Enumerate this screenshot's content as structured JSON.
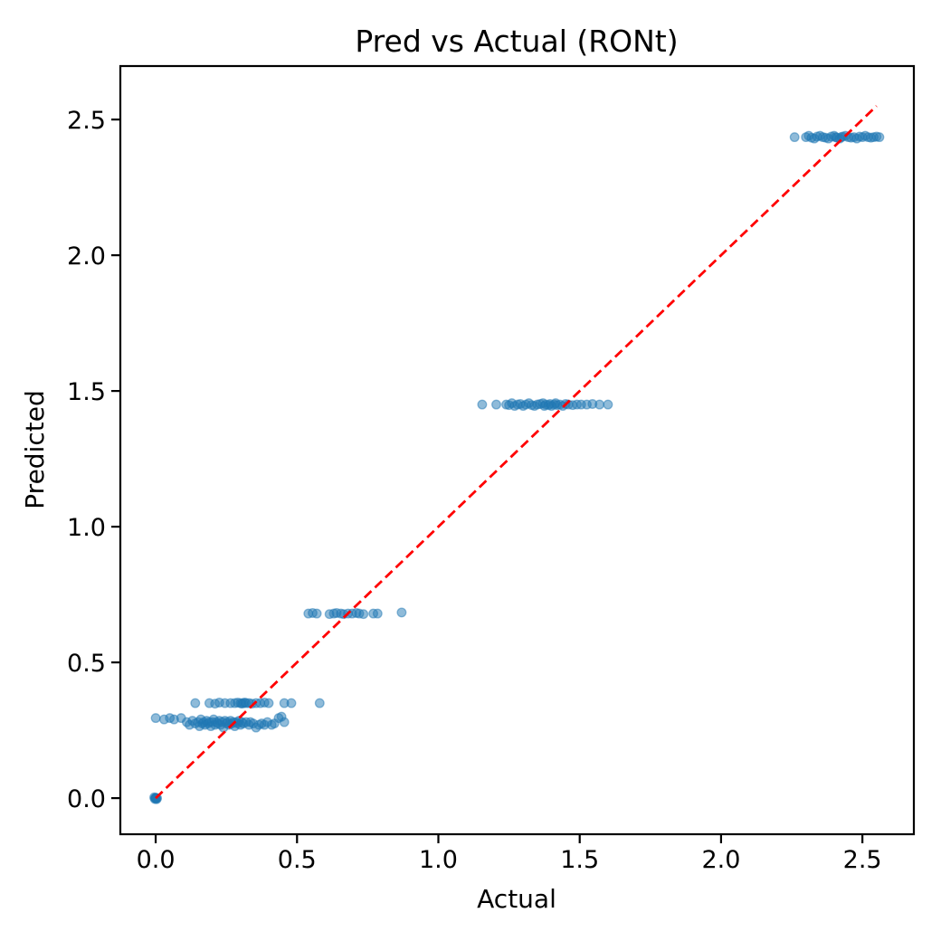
{
  "figure": {
    "title": "Pred vs Actual (RONt)"
  },
  "chart_data": {
    "type": "scatter",
    "title": "Pred vs Actual (RONt)",
    "xlabel": "Actual",
    "ylabel": "Predicted",
    "xlim": [
      -0.125,
      2.682
    ],
    "ylim": [
      -0.133,
      2.697
    ],
    "x_ticks": [
      0.0,
      0.5,
      1.0,
      1.5,
      2.0,
      2.5
    ],
    "x_tick_labels": [
      "0.0",
      "0.5",
      "1.0",
      "1.5",
      "2.0",
      "2.5"
    ],
    "y_ticks": [
      0.0,
      0.5,
      1.0,
      1.5,
      2.0,
      2.5
    ],
    "y_tick_labels": [
      "0.0",
      "0.5",
      "1.0",
      "1.5",
      "2.0",
      "2.5"
    ],
    "grid": false,
    "marker": {
      "color": "#1f77b4",
      "opacity": 0.5,
      "radius": 4.8
    },
    "identity_line": {
      "color": "#ff0000",
      "style": "dashed",
      "width": 2.8,
      "from": [
        0.0,
        0.0
      ],
      "to": [
        2.55,
        2.55
      ]
    },
    "series": [
      {
        "name": "predictions",
        "points": [
          [
            0,
            0
          ],
          [
            0,
            0
          ],
          [
            0,
            0
          ],
          [
            0,
            0
          ],
          [
            0,
            0
          ],
          [
            0,
            0
          ],
          [
            0,
            0
          ],
          [
            0,
            0
          ],
          [
            0.005,
            0
          ],
          [
            -0.005,
            0.003
          ],
          [
            0.003,
            -0.004
          ],
          [
            -0.003,
            -0.003
          ],
          [
            0.0,
            0.295
          ],
          [
            0.03,
            0.29
          ],
          [
            0.05,
            0.295
          ],
          [
            0.065,
            0.29
          ],
          [
            0.09,
            0.295
          ],
          [
            0.11,
            0.28
          ],
          [
            0.12,
            0.27
          ],
          [
            0.13,
            0.285
          ],
          [
            0.14,
            0.275
          ],
          [
            0.15,
            0.28
          ],
          [
            0.155,
            0.265
          ],
          [
            0.16,
            0.29
          ],
          [
            0.165,
            0.275
          ],
          [
            0.17,
            0.28
          ],
          [
            0.175,
            0.27
          ],
          [
            0.18,
            0.285
          ],
          [
            0.185,
            0.275
          ],
          [
            0.19,
            0.28
          ],
          [
            0.195,
            0.265
          ],
          [
            0.2,
            0.28
          ],
          [
            0.205,
            0.29
          ],
          [
            0.21,
            0.27
          ],
          [
            0.215,
            0.28
          ],
          [
            0.22,
            0.275
          ],
          [
            0.225,
            0.285
          ],
          [
            0.23,
            0.27
          ],
          [
            0.235,
            0.28
          ],
          [
            0.24,
            0.26
          ],
          [
            0.245,
            0.285
          ],
          [
            0.25,
            0.275
          ],
          [
            0.255,
            0.28
          ],
          [
            0.26,
            0.27
          ],
          [
            0.265,
            0.285
          ],
          [
            0.27,
            0.275
          ],
          [
            0.275,
            0.28
          ],
          [
            0.28,
            0.265
          ],
          [
            0.285,
            0.28
          ],
          [
            0.29,
            0.275
          ],
          [
            0.295,
            0.285
          ],
          [
            0.3,
            0.27
          ],
          [
            0.305,
            0.28
          ],
          [
            0.31,
            0.275
          ],
          [
            0.32,
            0.28
          ],
          [
            0.33,
            0.27
          ],
          [
            0.335,
            0.28
          ],
          [
            0.345,
            0.275
          ],
          [
            0.355,
            0.26
          ],
          [
            0.365,
            0.27
          ],
          [
            0.375,
            0.275
          ],
          [
            0.385,
            0.27
          ],
          [
            0.395,
            0.28
          ],
          [
            0.41,
            0.27
          ],
          [
            0.42,
            0.275
          ],
          [
            0.435,
            0.295
          ],
          [
            0.445,
            0.3
          ],
          [
            0.455,
            0.28
          ],
          [
            0.14,
            0.35
          ],
          [
            0.19,
            0.35
          ],
          [
            0.21,
            0.348
          ],
          [
            0.225,
            0.352
          ],
          [
            0.245,
            0.35
          ],
          [
            0.265,
            0.35
          ],
          [
            0.28,
            0.35
          ],
          [
            0.29,
            0.352
          ],
          [
            0.3,
            0.35
          ],
          [
            0.305,
            0.348
          ],
          [
            0.31,
            0.35
          ],
          [
            0.315,
            0.352
          ],
          [
            0.32,
            0.35
          ],
          [
            0.33,
            0.35
          ],
          [
            0.34,
            0.348
          ],
          [
            0.355,
            0.35
          ],
          [
            0.37,
            0.35
          ],
          [
            0.385,
            0.352
          ],
          [
            0.4,
            0.35
          ],
          [
            0.455,
            0.35
          ],
          [
            0.48,
            0.35
          ],
          [
            0.58,
            0.35
          ],
          [
            0.54,
            0.68
          ],
          [
            0.555,
            0.682
          ],
          [
            0.57,
            0.68
          ],
          [
            0.615,
            0.678
          ],
          [
            0.63,
            0.68
          ],
          [
            0.64,
            0.682
          ],
          [
            0.655,
            0.68
          ],
          [
            0.665,
            0.678
          ],
          [
            0.68,
            0.68
          ],
          [
            0.695,
            0.68
          ],
          [
            0.71,
            0.682
          ],
          [
            0.72,
            0.68
          ],
          [
            0.735,
            0.678
          ],
          [
            0.77,
            0.68
          ],
          [
            0.785,
            0.68
          ],
          [
            0.87,
            0.684
          ],
          [
            1.155,
            1.45
          ],
          [
            1.205,
            1.45
          ],
          [
            1.24,
            1.45
          ],
          [
            1.25,
            1.448
          ],
          [
            1.26,
            1.455
          ],
          [
            1.27,
            1.445
          ],
          [
            1.28,
            1.45
          ],
          [
            1.29,
            1.452
          ],
          [
            1.3,
            1.445
          ],
          [
            1.31,
            1.45
          ],
          [
            1.32,
            1.455
          ],
          [
            1.33,
            1.448
          ],
          [
            1.34,
            1.445
          ],
          [
            1.35,
            1.45
          ],
          [
            1.36,
            1.452
          ],
          [
            1.37,
            1.455
          ],
          [
            1.375,
            1.445
          ],
          [
            1.38,
            1.45
          ],
          [
            1.39,
            1.448
          ],
          [
            1.395,
            1.452
          ],
          [
            1.4,
            1.445
          ],
          [
            1.41,
            1.45
          ],
          [
            1.415,
            1.455
          ],
          [
            1.42,
            1.448
          ],
          [
            1.43,
            1.45
          ],
          [
            1.44,
            1.445
          ],
          [
            1.45,
            1.452
          ],
          [
            1.46,
            1.45
          ],
          [
            1.475,
            1.448
          ],
          [
            1.49,
            1.45
          ],
          [
            1.505,
            1.45
          ],
          [
            1.525,
            1.45
          ],
          [
            1.545,
            1.452
          ],
          [
            1.57,
            1.45
          ],
          [
            1.6,
            1.45
          ],
          [
            2.26,
            2.435
          ],
          [
            2.3,
            2.435
          ],
          [
            2.31,
            2.44
          ],
          [
            2.32,
            2.433
          ],
          [
            2.33,
            2.43
          ],
          [
            2.34,
            2.437
          ],
          [
            2.35,
            2.44
          ],
          [
            2.36,
            2.435
          ],
          [
            2.37,
            2.433
          ],
          [
            2.38,
            2.43
          ],
          [
            2.39,
            2.437
          ],
          [
            2.4,
            2.44
          ],
          [
            2.405,
            2.435
          ],
          [
            2.41,
            2.433
          ],
          [
            2.42,
            2.43
          ],
          [
            2.425,
            2.435
          ],
          [
            2.43,
            2.437
          ],
          [
            2.44,
            2.44
          ],
          [
            2.45,
            2.435
          ],
          [
            2.46,
            2.433
          ],
          [
            2.47,
            2.435
          ],
          [
            2.48,
            2.43
          ],
          [
            2.49,
            2.437
          ],
          [
            2.5,
            2.435
          ],
          [
            2.51,
            2.44
          ],
          [
            2.52,
            2.435
          ],
          [
            2.53,
            2.433
          ],
          [
            2.54,
            2.435
          ],
          [
            2.55,
            2.437
          ],
          [
            2.56,
            2.435
          ]
        ]
      }
    ]
  }
}
